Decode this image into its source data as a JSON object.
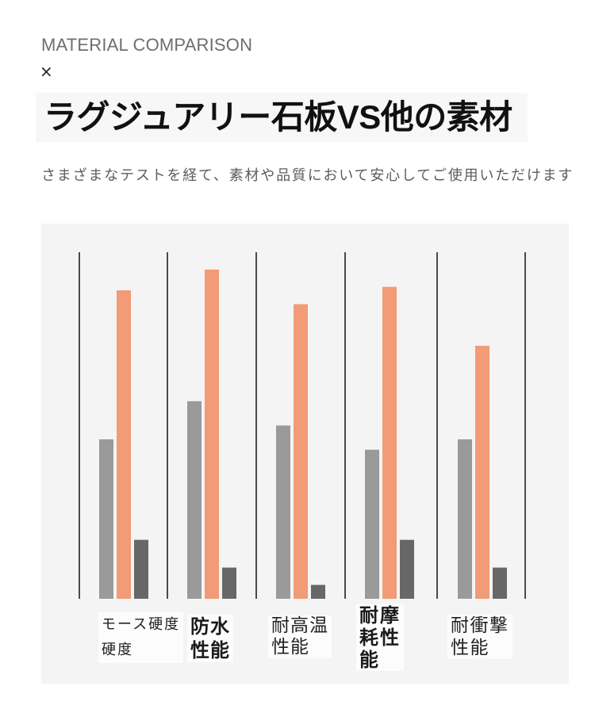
{
  "header": {
    "kicker": "MATERIAL COMPARISON",
    "cross_mark": "×",
    "title": "ラグジュアリー石板VS他の素材",
    "subtitle": "さまざまなテストを経て、素材や品質において安心してご使用いただけます"
  },
  "colors": {
    "page_bg": "#ffffff",
    "panel_bg": "#f4f4f4",
    "separator": "#111111"
  },
  "chart_data": {
    "type": "bar",
    "categories": [
      [
        "モース硬度",
        "硬度"
      ],
      [
        "防水",
        "性能"
      ],
      [
        "耐高温",
        "性能"
      ],
      [
        "耐摩",
        "耗性",
        "能"
      ],
      [
        "耐衝撃",
        "性能"
      ]
    ],
    "series": [
      {
        "color": "#9a9a9a",
        "values": [
          46,
          57,
          50,
          43,
          46
        ]
      },
      {
        "color": "#f29b76",
        "values": [
          89,
          95,
          85,
          90,
          73
        ]
      },
      {
        "color": "#676767",
        "values": [
          17,
          9,
          4,
          17,
          9
        ]
      }
    ],
    "ylim": [
      0,
      100
    ],
    "grid": false,
    "legend": "none"
  }
}
